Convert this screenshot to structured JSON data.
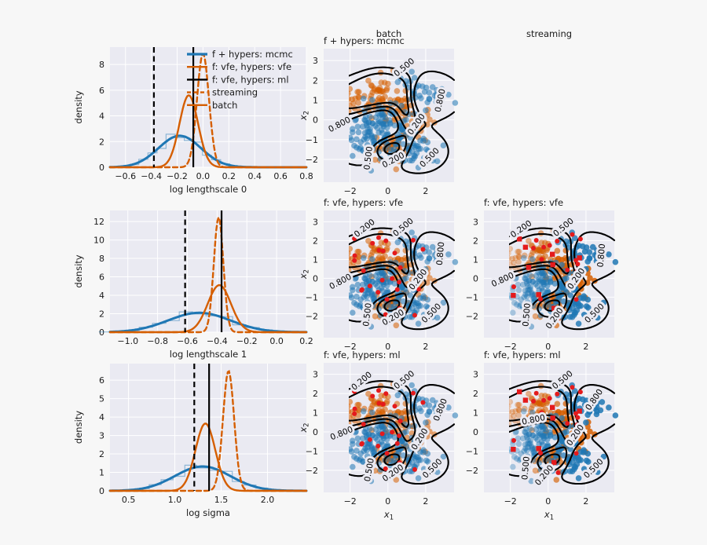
{
  "figure": {
    "background": "#f7f7f7",
    "axes_background": "#eaeaf2",
    "grid_color": "#ffffff",
    "text_color": "#1a1a1a"
  },
  "colors": {
    "blue": "#1f77b4",
    "orange": "#d55e00",
    "black": "#000000",
    "red": "#e41a1c"
  },
  "headers": {
    "batch": "batch",
    "streaming": "streaming"
  },
  "legend": {
    "items": [
      {
        "label": "f + hypers: mcmc",
        "color": "blue",
        "dash": false,
        "lw": 3.2
      },
      {
        "label": "f: vfe, hypers: vfe",
        "color": "orange",
        "dash": false,
        "lw": 2.4
      },
      {
        "label": "f: vfe, hypers: ml",
        "color": "black",
        "dash": false,
        "lw": 2.4
      },
      {
        "label": "streaming",
        "color": "orange",
        "dash": true,
        "lw": 2.4
      },
      {
        "label": "batch",
        "color": "orange",
        "dash": false,
        "lw": 2.4
      }
    ]
  },
  "chart_data": {
    "density_plots": [
      {
        "id": "d0",
        "type": "density",
        "xlabel": "log lengthscale 0",
        "ylabel": "density",
        "xlim": [
          -0.72,
          0.8
        ],
        "ylim": [
          0,
          9.35
        ],
        "xticks": [
          {
            "v": -0.6,
            "t": "−0.6"
          },
          {
            "v": -0.4,
            "t": "−0.4"
          },
          {
            "v": -0.2,
            "t": "−0.2"
          },
          {
            "v": 0,
            "t": "0.0"
          },
          {
            "v": 0.2,
            "t": "0.2"
          },
          {
            "v": 0.4,
            "t": "0.4"
          },
          {
            "v": 0.6,
            "t": "0.6"
          },
          {
            "v": 0.8,
            "t": "0.8"
          }
        ],
        "yticks": [
          {
            "v": 0,
            "t": "0"
          },
          {
            "v": 2,
            "t": "2"
          },
          {
            "v": 4,
            "t": "4"
          },
          {
            "v": 6,
            "t": "6"
          },
          {
            "v": 8,
            "t": "8"
          }
        ],
        "series": [
          {
            "name": "f + hypers: mcmc",
            "color": "blue",
            "mean": -0.18,
            "sd": 0.165,
            "peak": 2.45,
            "lw": 3,
            "dash": false,
            "hist": true
          },
          {
            "name": "batch",
            "color": "orange",
            "mean": -0.11,
            "sd": 0.072,
            "peak": 5.6,
            "lw": 2.4,
            "dash": false
          },
          {
            "name": "streaming",
            "color": "orange",
            "mean": 0.0,
            "sd": 0.046,
            "peak": 8.85,
            "lw": 2.4,
            "dash": true
          }
        ],
        "vlines": [
          {
            "x": -0.38,
            "dash": true
          },
          {
            "x": -0.075,
            "dash": false
          }
        ],
        "legend": true
      },
      {
        "id": "d1",
        "type": "density",
        "xlabel": "log lengthscale 1",
        "ylabel": "density",
        "xlim": [
          -1.12,
          0.2
        ],
        "ylim": [
          0,
          13.2
        ],
        "xticks": [
          {
            "v": -1.0,
            "t": "−1.0"
          },
          {
            "v": -0.8,
            "t": "−0.8"
          },
          {
            "v": -0.6,
            "t": "−0.6"
          },
          {
            "v": -0.4,
            "t": "−0.4"
          },
          {
            "v": -0.2,
            "t": "−0.2"
          },
          {
            "v": 0,
            "t": "0.0"
          },
          {
            "v": 0.2,
            "t": "0.2"
          }
        ],
        "yticks": [
          {
            "v": 0,
            "t": "0"
          },
          {
            "v": 2,
            "t": "2"
          },
          {
            "v": 4,
            "t": "4"
          },
          {
            "v": 6,
            "t": "6"
          },
          {
            "v": 8,
            "t": "8"
          },
          {
            "v": 10,
            "t": "10"
          },
          {
            "v": 12,
            "t": "12"
          }
        ],
        "series": [
          {
            "name": "f + hypers: mcmc",
            "color": "blue",
            "mean": -0.52,
            "sd": 0.21,
            "peak": 2.1,
            "lw": 3,
            "dash": false,
            "hist": true
          },
          {
            "name": "batch",
            "color": "orange",
            "mean": -0.385,
            "sd": 0.078,
            "peak": 5.1,
            "lw": 2.4,
            "dash": false
          },
          {
            "name": "streaming",
            "color": "orange",
            "mean": -0.39,
            "sd": 0.032,
            "peak": 12.45,
            "lw": 2.4,
            "dash": true
          }
        ],
        "vlines": [
          {
            "x": -0.615,
            "dash": true
          },
          {
            "x": -0.37,
            "dash": false
          }
        ],
        "legend": false
      },
      {
        "id": "d2",
        "type": "density",
        "xlabel": "log sigma",
        "ylabel": "density",
        "xlim": [
          0.3,
          2.42
        ],
        "ylim": [
          0,
          6.9
        ],
        "xticks": [
          {
            "v": 0.5,
            "t": "0.5"
          },
          {
            "v": 1.0,
            "t": "1.0"
          },
          {
            "v": 1.5,
            "t": "1.5"
          },
          {
            "v": 2.0,
            "t": "2.0"
          }
        ],
        "yticks": [
          {
            "v": 0,
            "t": "0"
          },
          {
            "v": 1,
            "t": "1"
          },
          {
            "v": 2,
            "t": "2"
          },
          {
            "v": 3,
            "t": "3"
          },
          {
            "v": 4,
            "t": "4"
          },
          {
            "v": 5,
            "t": "5"
          },
          {
            "v": 6,
            "t": "6"
          }
        ],
        "series": [
          {
            "name": "f + hypers: mcmc",
            "color": "blue",
            "mean": 1.3,
            "sd": 0.3,
            "peak": 1.32,
            "lw": 3,
            "dash": false,
            "hist": true
          },
          {
            "name": "batch",
            "color": "orange",
            "mean": 1.33,
            "sd": 0.107,
            "peak": 3.65,
            "lw": 2.4,
            "dash": false
          },
          {
            "name": "streaming",
            "color": "orange",
            "mean": 1.58,
            "sd": 0.06,
            "peak": 6.5,
            "lw": 2.4,
            "dash": true
          }
        ],
        "vlines": [
          {
            "x": 1.21,
            "dash": true
          },
          {
            "x": 1.37,
            "dash": false
          }
        ],
        "legend": false
      }
    ],
    "contour_plots": [
      {
        "id": "c0",
        "type": "contour",
        "title": "f + hypers: mcmc",
        "group": "batch",
        "xlim": [
          -3.4,
          3.5
        ],
        "ylim": [
          -3.15,
          3.6
        ],
        "xticks": [
          {
            "v": -2,
            "t": "−2"
          },
          {
            "v": 0,
            "t": "0"
          },
          {
            "v": 2,
            "t": "2"
          }
        ],
        "yticks": [
          {
            "v": 3,
            "t": "3"
          },
          {
            "v": 2,
            "t": "2"
          },
          {
            "v": 1,
            "t": "1"
          },
          {
            "v": 0,
            "t": "0"
          },
          {
            "v": -1,
            "t": "−1"
          },
          {
            "v": -2,
            "t": "−2"
          }
        ],
        "ylabel": {
          "main": "x",
          "sub": "2"
        },
        "xlabel": null,
        "levels": [
          0.2,
          0.5,
          0.8
        ],
        "fade": false,
        "inducing_points": null,
        "contour_labels": [
          {
            "t": "0.500",
            "x": 0.95,
            "y": 2.55,
            "r": -40
          },
          {
            "t": "0.800",
            "x": 2.9,
            "y": 0.95,
            "r": -78
          },
          {
            "t": "0.800",
            "x": -2.5,
            "y": -0.35,
            "r": -28
          },
          {
            "t": "0.200",
            "x": 1.62,
            "y": -0.3,
            "r": -55
          },
          {
            "t": "0.500",
            "x": 2.3,
            "y": -2.0,
            "r": -45
          },
          {
            "t": "0.200",
            "x": 0.35,
            "y": -2.15,
            "r": -28
          },
          {
            "t": "0.500",
            "x": -0.9,
            "y": -1.95,
            "r": -83
          }
        ]
      },
      {
        "id": "c1",
        "type": "contour",
        "title": "f: vfe, hypers: vfe",
        "group": "batch",
        "xlim": [
          -3.4,
          3.5
        ],
        "ylim": [
          -3.15,
          3.6
        ],
        "xticks": [
          {
            "v": -2,
            "t": "−2"
          },
          {
            "v": 0,
            "t": "0"
          },
          {
            "v": 2,
            "t": "2"
          }
        ],
        "yticks": [
          {
            "v": 3,
            "t": "3"
          },
          {
            "v": 2,
            "t": "2"
          },
          {
            "v": 1,
            "t": "1"
          },
          {
            "v": 0,
            "t": "0"
          },
          {
            "v": -1,
            "t": "−1"
          },
          {
            "v": -2,
            "t": "−2"
          }
        ],
        "ylabel": {
          "main": "x",
          "sub": "2"
        },
        "xlabel": null,
        "levels": [
          0.2,
          0.5,
          0.8
        ],
        "fade": false,
        "inducing_points": {
          "color": "red",
          "markers": [
            "circle"
          ],
          "count": 26
        },
        "contour_labels": [
          {
            "t": "0.200",
            "x": -1.15,
            "y": 2.55,
            "r": -38
          },
          {
            "t": "0.500",
            "x": 0.9,
            "y": 2.6,
            "r": -40
          },
          {
            "t": "0.800",
            "x": 2.92,
            "y": 1.3,
            "r": -85
          },
          {
            "t": "0.800",
            "x": -2.45,
            "y": -0.3,
            "r": -28
          },
          {
            "t": "0.200",
            "x": 1.7,
            "y": -0.15,
            "r": -52
          },
          {
            "t": "0.500",
            "x": 2.4,
            "y": -1.95,
            "r": -45
          },
          {
            "t": "0.200",
            "x": 0.35,
            "y": -2.2,
            "r": -30
          },
          {
            "t": "0.500",
            "x": -0.95,
            "y": -1.95,
            "r": -83
          }
        ]
      },
      {
        "id": "c2",
        "type": "contour",
        "title": "f: vfe, hypers: vfe",
        "group": "streaming",
        "xlim": [
          -3.4,
          3.5
        ],
        "ylim": [
          -3.15,
          3.6
        ],
        "xticks": [
          {
            "v": -2,
            "t": "−2"
          },
          {
            "v": 0,
            "t": "0"
          },
          {
            "v": 2,
            "t": "2"
          }
        ],
        "yticks": [
          {
            "v": 3,
            "t": "3"
          },
          {
            "v": 2,
            "t": "2"
          },
          {
            "v": 1,
            "t": "1"
          },
          {
            "v": 0,
            "t": "0"
          },
          {
            "v": -1,
            "t": "−1"
          },
          {
            "v": -2,
            "t": "−2"
          }
        ],
        "ylabel": null,
        "xlabel": null,
        "levels": [
          0.2,
          0.5,
          0.8
        ],
        "fade": true,
        "inducing_points": {
          "color": "red",
          "markers": [
            "circle",
            "square"
          ],
          "count": 26
        },
        "contour_labels": [
          {
            "t": "0.200",
            "x": -1.35,
            "y": 2.5,
            "r": -35
          },
          {
            "t": "0.500",
            "x": 0.9,
            "y": 2.6,
            "r": -40
          },
          {
            "t": "0.800",
            "x": 2.95,
            "y": 1.2,
            "r": -85
          },
          {
            "t": "0.800",
            "x": -2.35,
            "y": -0.2,
            "r": -25
          },
          {
            "t": "0.200",
            "x": 1.6,
            "y": -0.1,
            "r": -55
          },
          {
            "t": "0.500",
            "x": 2.55,
            "y": -1.95,
            "r": -45
          },
          {
            "t": "0.200",
            "x": 0.45,
            "y": -2.2,
            "r": -55
          },
          {
            "t": "0.500",
            "x": -1.0,
            "y": -1.95,
            "r": -85
          }
        ]
      },
      {
        "id": "c3",
        "type": "contour",
        "title": "f: vfe, hypers: ml",
        "group": "batch",
        "xlim": [
          -3.4,
          3.5
        ],
        "ylim": [
          -3.15,
          3.6
        ],
        "xticks": [
          {
            "v": -2,
            "t": "−2"
          },
          {
            "v": 0,
            "t": "0"
          },
          {
            "v": 2,
            "t": "2"
          }
        ],
        "yticks": [
          {
            "v": 3,
            "t": "3"
          },
          {
            "v": 2,
            "t": "2"
          },
          {
            "v": 1,
            "t": "1"
          },
          {
            "v": 0,
            "t": "0"
          },
          {
            "v": -1,
            "t": "−1"
          },
          {
            "v": -2,
            "t": "−2"
          }
        ],
        "ylabel": {
          "main": "x",
          "sub": "2"
        },
        "xlabel": {
          "main": "x",
          "sub": "1"
        },
        "levels": [
          0.2,
          0.5,
          0.8
        ],
        "fade": false,
        "inducing_points": {
          "color": "red",
          "markers": [
            "circle"
          ],
          "count": 26
        },
        "contour_labels": [
          {
            "t": "0.200",
            "x": -1.3,
            "y": 2.55,
            "r": -40
          },
          {
            "t": "0.500",
            "x": 0.95,
            "y": 2.6,
            "r": -40
          },
          {
            "t": "0.800",
            "x": 2.9,
            "y": 1.1,
            "r": -68
          },
          {
            "t": "0.800",
            "x": -2.4,
            "y": -0.2,
            "r": -22
          },
          {
            "t": "0.200",
            "x": 1.8,
            "y": -0.45,
            "r": -58
          },
          {
            "t": "0.500",
            "x": 2.45,
            "y": -2.0,
            "r": -45
          },
          {
            "t": "0.200",
            "x": 0.35,
            "y": -2.25,
            "r": -35
          },
          {
            "t": "0.500",
            "x": -0.85,
            "y": -2.0,
            "r": -80
          }
        ]
      },
      {
        "id": "c4",
        "type": "contour",
        "title": "f: vfe, hypers: ml",
        "group": "streaming",
        "xlim": [
          -3.4,
          3.5
        ],
        "ylim": [
          -3.15,
          3.6
        ],
        "xticks": [
          {
            "v": -2,
            "t": "−2"
          },
          {
            "v": 0,
            "t": "0"
          },
          {
            "v": 2,
            "t": "2"
          }
        ],
        "yticks": [
          {
            "v": 3,
            "t": "3"
          },
          {
            "v": 2,
            "t": "2"
          },
          {
            "v": 1,
            "t": "1"
          },
          {
            "v": 0,
            "t": "0"
          },
          {
            "v": -1,
            "t": "−1"
          },
          {
            "v": -2,
            "t": "−2"
          }
        ],
        "ylabel": null,
        "xlabel": {
          "main": "x",
          "sub": "1"
        },
        "levels": [
          0.2,
          0.5,
          0.8
        ],
        "fade": true,
        "inducing_points": {
          "color": "red",
          "markers": [
            "circle",
            "square"
          ],
          "count": 26
        },
        "contour_labels": [
          {
            "t": "0.500",
            "x": 0.85,
            "y": 2.6,
            "r": -40
          },
          {
            "t": "0.800",
            "x": 2.55,
            "y": 1.6,
            "r": -55
          },
          {
            "t": "0.800",
            "x": -0.75,
            "y": 0.5,
            "r": -12
          },
          {
            "t": "0.200",
            "x": 1.55,
            "y": -0.25,
            "r": -55
          },
          {
            "t": "0.500",
            "x": 2.5,
            "y": -2.0,
            "r": -45
          },
          {
            "t": "0.200",
            "x": -0.1,
            "y": -2.35,
            "r": -50
          },
          {
            "t": "0.500",
            "x": -1.05,
            "y": -1.9,
            "r": -85
          }
        ]
      }
    ],
    "scatter": {
      "classes": [
        {
          "name": "class-orange",
          "color": "orange",
          "clusters": [
            [
              -1.5,
              1.0,
              0.8,
              0.45,
              50
            ],
            [
              -0.4,
              1.65,
              0.55,
              0.4,
              22
            ],
            [
              0.35,
              -1.3,
              0.55,
              0.38,
              40
            ],
            [
              0.8,
              0.6,
              0.45,
              0.7,
              38
            ],
            [
              1.9,
              -0.4,
              0.45,
              0.45,
              12
            ]
          ]
        },
        {
          "name": "class-blue",
          "color": "blue",
          "clusters": [
            [
              -0.6,
              -0.6,
              0.85,
              0.7,
              120
            ],
            [
              2.25,
              1.2,
              0.5,
              0.3,
              26
            ],
            [
              1.35,
              -1.35,
              0.6,
              0.5,
              36
            ],
            [
              0.2,
              0.2,
              0.65,
              0.45,
              22
            ],
            [
              0.95,
              1.95,
              0.4,
              0.3,
              9
            ]
          ]
        }
      ]
    }
  }
}
